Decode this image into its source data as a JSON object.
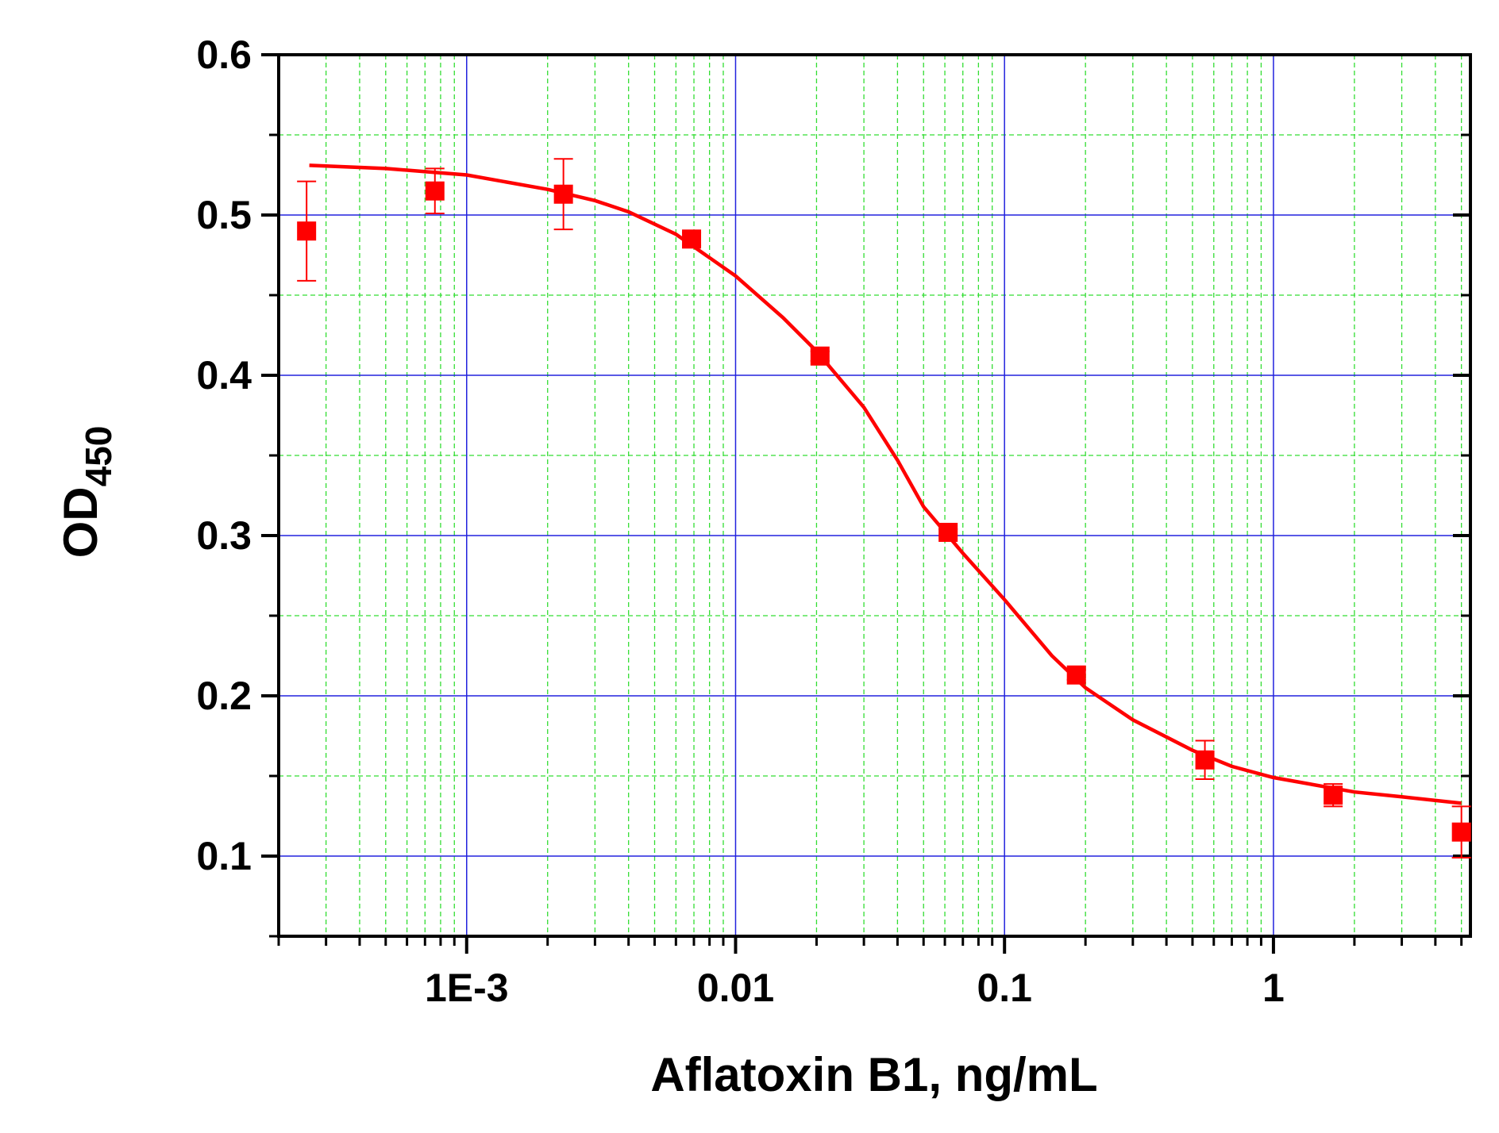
{
  "chart_data": {
    "type": "scatter",
    "xlabel": "Aflatoxin B1, ng/mL",
    "ylabel": "OD",
    "ylabel_sub": "450",
    "xscale": "log",
    "xlim": [
      0.0002,
      5.4
    ],
    "ylim": [
      0.05,
      0.6
    ],
    "xticks": [
      {
        "value": 0.001,
        "label": "1E-3"
      },
      0.01,
      0.1,
      1
    ],
    "yticks": [
      0.1,
      0.2,
      0.3,
      0.4,
      0.5,
      0.6
    ],
    "xminorticks": [
      0.0002,
      0.0003,
      0.0004,
      0.0005,
      0.0006,
      0.0007,
      0.0008,
      0.0009,
      0.002,
      0.003,
      0.004,
      0.005,
      0.006,
      0.007,
      0.008,
      0.009,
      0.02,
      0.03,
      0.04,
      0.05,
      0.06,
      0.07,
      0.08,
      0.09,
      0.2,
      0.3,
      0.4,
      0.5,
      0.6,
      0.7,
      0.8,
      0.9,
      2,
      3,
      4,
      5
    ],
    "yminorticks": [
      0.05,
      0.15,
      0.25,
      0.35,
      0.45,
      0.55
    ],
    "grid": true,
    "major_grid_color": "#2222dd",
    "minor_grid_color": "#33dd33",
    "series": [
      {
        "color": "#ff0000",
        "x": [
          0.000254,
          0.000762,
          0.00229,
          0.00686,
          0.0206,
          0.0617,
          0.185,
          0.556,
          1.667,
          5
        ],
        "values": [
          0.49,
          0.515,
          0.513,
          0.485,
          0.412,
          0.302,
          0.213,
          0.16,
          0.138,
          0.115
        ],
        "errors": [
          0.031,
          0.014,
          0.022,
          0.004,
          0.003,
          0.002,
          0.003,
          0.012,
          0.007,
          0.016
        ]
      }
    ],
    "fit": {
      "color": "#ff0000",
      "x": [
        0.00026,
        0.0005,
        0.001,
        0.002,
        0.003,
        0.004,
        0.006,
        0.01,
        0.015,
        0.02,
        0.03,
        0.04,
        0.05,
        0.07,
        0.1,
        0.15,
        0.2,
        0.3,
        0.5,
        0.7,
        1,
        2,
        3,
        5
      ],
      "values": [
        0.531,
        0.529,
        0.525,
        0.516,
        0.509,
        0.502,
        0.488,
        0.462,
        0.436,
        0.415,
        0.38,
        0.347,
        0.318,
        0.289,
        0.26,
        0.225,
        0.205,
        0.185,
        0.166,
        0.156,
        0.149,
        0.14,
        0.137,
        0.133
      ]
    }
  }
}
